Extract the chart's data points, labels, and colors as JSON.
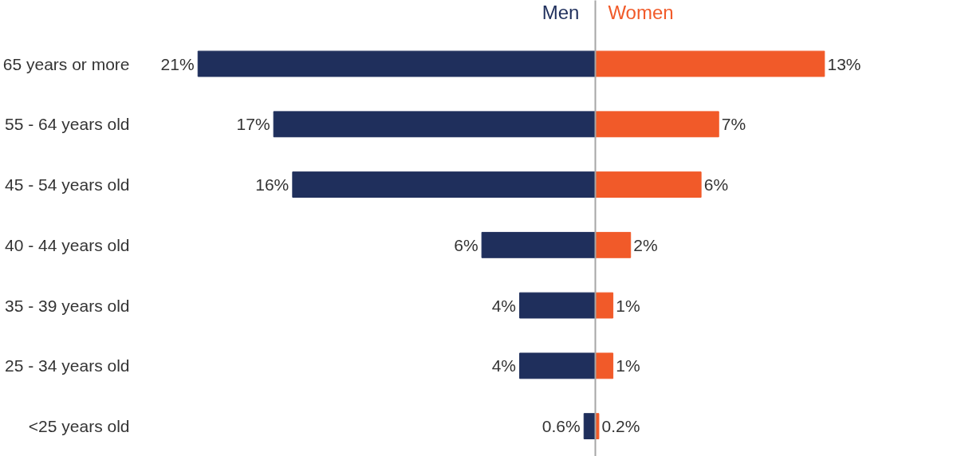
{
  "chart_data": [
    {
      "type": "bar",
      "orientation": "horizontal",
      "categories": [
        "65 years or more",
        "55 - 64 years old",
        "45 - 54 years old",
        "40 - 44 years old",
        "35 - 39 years old",
        "25 - 34 years old",
        "<25 years old"
      ],
      "series": [
        {
          "name": "Men",
          "color": "#1f2f5c",
          "values": [
            21,
            17,
            16,
            6,
            4,
            4,
            0.6
          ],
          "value_labels": [
            "21%",
            "17%",
            "16%",
            "6%",
            "4%",
            "4%",
            "0.6%"
          ]
        }
      ],
      "tick_labels": "y",
      "grid": false
    },
    {
      "type": "bar",
      "orientation": "horizontal",
      "categories": [
        null,
        null,
        null,
        null,
        null,
        null,
        null
      ],
      "series": [
        {
          "name": "Women",
          "color": "#f15a29",
          "values": [
            13,
            7,
            6,
            2,
            1,
            1,
            0.2
          ],
          "value_labels": [
            "13%",
            "7%",
            "6%",
            "2%",
            "1%",
            "1%",
            "0.2%"
          ]
        }
      ],
      "tick_labels": false,
      "grid": false
    }
  ]
}
